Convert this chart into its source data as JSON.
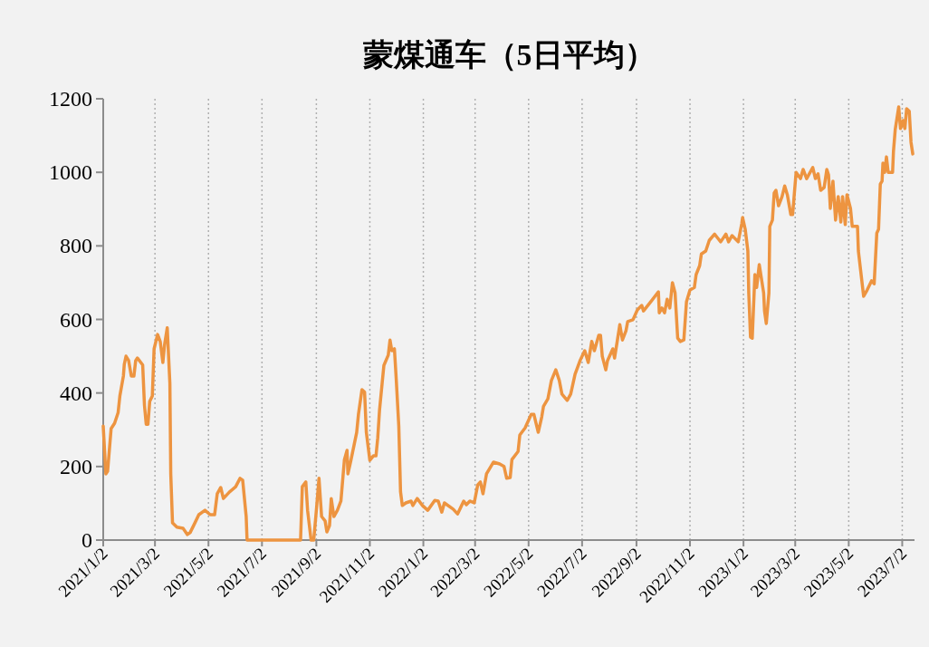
{
  "chart_data": {
    "type": "line",
    "title": "蒙煤通车（5日平均）",
    "x": [
      "2021-01-02",
      "2021-01-05",
      "2021-01-07",
      "2021-01-11",
      "2021-01-15",
      "2021-01-19",
      "2021-01-21",
      "2021-01-25",
      "2021-01-26",
      "2021-01-28",
      "2021-01-31",
      "2021-02-03",
      "2021-02-06",
      "2021-02-08",
      "2021-02-10",
      "2021-02-16",
      "2021-02-18",
      "2021-02-20",
      "2021-02-22",
      "2021-02-24",
      "2021-02-27",
      "2021-03-01",
      "2021-03-05",
      "2021-03-08",
      "2021-03-11",
      "2021-03-13",
      "2021-03-16",
      "2021-03-19",
      "2021-03-20",
      "2021-03-22",
      "2021-03-27",
      "2021-04-03",
      "2021-04-08",
      "2021-04-11",
      "2021-04-16",
      "2021-04-21",
      "2021-04-28",
      "2021-05-04",
      "2021-05-09",
      "2021-05-12",
      "2021-05-16",
      "2021-05-19",
      "2021-05-26",
      "2021-06-02",
      "2021-06-07",
      "2021-06-10",
      "2021-06-14",
      "2021-06-15",
      "2021-08-15",
      "2021-08-17",
      "2021-08-21",
      "2021-08-23",
      "2021-08-27",
      "2021-08-30",
      "2021-09-02",
      "2021-09-05",
      "2021-09-08",
      "2021-09-12",
      "2021-09-14",
      "2021-09-17",
      "2021-09-19",
      "2021-09-22",
      "2021-09-26",
      "2021-09-30",
      "2021-10-04",
      "2021-10-07",
      "2021-10-08",
      "2021-10-11",
      "2021-10-18",
      "2021-10-20",
      "2021-10-24",
      "2021-10-27",
      "2021-10-29",
      "2021-11-02",
      "2021-11-06",
      "2021-11-09",
      "2021-11-11",
      "2021-11-13",
      "2021-11-16",
      "2021-11-18",
      "2021-11-23",
      "2021-11-25",
      "2021-11-27",
      "2021-11-30",
      "2021-12-02",
      "2021-12-05",
      "2021-12-07",
      "2021-12-09",
      "2021-12-13",
      "2021-12-19",
      "2021-12-21",
      "2021-12-26",
      "2022-01-01",
      "2022-01-07",
      "2022-01-15",
      "2022-01-19",
      "2022-01-23",
      "2022-01-26",
      "2022-02-05",
      "2022-02-10",
      "2022-02-17",
      "2022-02-20",
      "2022-02-24",
      "2022-03-01",
      "2022-03-05",
      "2022-03-08",
      "2022-03-11",
      "2022-03-15",
      "2022-03-23",
      "2022-03-30",
      "2022-04-04",
      "2022-04-07",
      "2022-04-11",
      "2022-04-13",
      "2022-04-20",
      "2022-04-22",
      "2022-04-28",
      "2022-05-05",
      "2022-05-08",
      "2022-05-13",
      "2022-05-17",
      "2022-05-19",
      "2022-05-24",
      "2022-05-28",
      "2022-06-02",
      "2022-06-06",
      "2022-06-09",
      "2022-06-15",
      "2022-06-19",
      "2022-06-24",
      "2022-06-30",
      "2022-07-05",
      "2022-07-09",
      "2022-07-13",
      "2022-07-16",
      "2022-07-21",
      "2022-07-23",
      "2022-07-25",
      "2022-07-29",
      "2022-07-31",
      "2022-08-06",
      "2022-08-08",
      "2022-08-11",
      "2022-08-14",
      "2022-08-17",
      "2022-08-21",
      "2022-08-23",
      "2022-08-29",
      "2022-09-03",
      "2022-09-08",
      "2022-09-10",
      "2022-09-19",
      "2022-09-27",
      "2022-09-28",
      "2022-10-01",
      "2022-10-04",
      "2022-10-07",
      "2022-10-10",
      "2022-10-13",
      "2022-10-16",
      "2022-10-19",
      "2022-10-22",
      "2022-10-26",
      "2022-10-29",
      "2022-11-02",
      "2022-11-07",
      "2022-11-09",
      "2022-11-13",
      "2022-11-15",
      "2022-11-20",
      "2022-11-24",
      "2022-11-30",
      "2022-12-03",
      "2022-12-07",
      "2022-12-13",
      "2022-12-16",
      "2022-12-20",
      "2022-12-27",
      "2022-12-31",
      "2023-01-01",
      "2023-01-04",
      "2023-01-07",
      "2023-01-08",
      "2023-01-10",
      "2023-01-12",
      "2023-01-15",
      "2023-01-17",
      "2023-01-20",
      "2023-01-25",
      "2023-01-26",
      "2023-01-28",
      "2023-01-31",
      "2023-02-01",
      "2023-02-04",
      "2023-02-06",
      "2023-02-08",
      "2023-02-11",
      "2023-02-15",
      "2023-02-18",
      "2023-02-21",
      "2023-02-25",
      "2023-02-27",
      "2023-03-03",
      "2023-03-08",
      "2023-03-11",
      "2023-03-15",
      "2023-03-22",
      "2023-03-25",
      "2023-03-28",
      "2023-03-31",
      "2023-04-04",
      "2023-04-07",
      "2023-04-09",
      "2023-04-11",
      "2023-04-14",
      "2023-04-17",
      "2023-04-20",
      "2023-04-23",
      "2023-04-25",
      "2023-04-28",
      "2023-04-30",
      "2023-05-04",
      "2023-05-06",
      "2023-05-12",
      "2023-05-13",
      "2023-05-19",
      "2023-05-23",
      "2023-05-28",
      "2023-05-31",
      "2023-06-03",
      "2023-06-05",
      "2023-06-07",
      "2023-06-09",
      "2023-06-10",
      "2023-06-12",
      "2023-06-14",
      "2023-06-16",
      "2023-06-21",
      "2023-06-22",
      "2023-06-24",
      "2023-06-28",
      "2023-06-30",
      "2023-07-03",
      "2023-07-05",
      "2023-07-07",
      "2023-07-10",
      "2023-07-12",
      "2023-07-14"
    ],
    "series": [
      {
        "color": "#ed9440",
        "values": [
          310,
          180,
          187,
          303,
          318,
          347,
          392,
          446,
          478,
          500,
          488,
          446,
          446,
          488,
          495,
          476,
          367,
          315,
          315,
          377,
          392,
          520,
          559,
          540,
          483,
          532,
          577,
          426,
          180,
          47,
          35,
          32,
          15,
          20,
          44,
          69,
          81,
          69,
          69,
          126,
          143,
          113,
          131,
          145,
          168,
          163,
          64,
          0,
          0,
          145,
          158,
          81,
          0,
          0,
          81,
          168,
          64,
          52,
          22,
          39,
          113,
          64,
          81,
          106,
          219,
          244,
          180,
          212,
          293,
          342,
          409,
          402,
          293,
          217,
          229,
          229,
          278,
          352,
          426,
          475,
          503,
          544,
          515,
          520,
          441,
          310,
          131,
          94,
          101,
          106,
          94,
          113,
          94,
          81,
          108,
          106,
          76,
          101,
          84,
          71,
          106,
          96,
          106,
          101,
          150,
          158,
          126,
          180,
          212,
          207,
          200,
          168,
          170,
          219,
          241,
          286,
          305,
          342,
          342,
          293,
          335,
          364,
          384,
          434,
          463,
          434,
          397,
          380,
          397,
          451,
          490,
          515,
          483,
          540,
          515,
          557,
          557,
          500,
          463,
          488,
          520,
          495,
          540,
          586,
          544,
          569,
          594,
          599,
          626,
          638,
          623,
          650,
          675,
          618,
          631,
          618,
          655,
          631,
          700,
          672,
          549,
          540,
          544,
          648,
          680,
          687,
          722,
          746,
          778,
          786,
          815,
          832,
          823,
          811,
          832,
          811,
          828,
          811,
          860,
          877,
          845,
          786,
          672,
          552,
          549,
          722,
          687,
          749,
          672,
          623,
          589,
          672,
          853,
          870,
          944,
          951,
          909,
          934,
          963,
          939,
          885,
          885,
          1000,
          983,
          1008,
          983,
          1013,
          983,
          996,
          951,
          959,
          1008,
          993,
          902,
          976,
          870,
          934,
          865,
          934,
          858,
          939,
          902,
          853,
          853,
          786,
          663,
          680,
          705,
          697,
          835,
          845,
          968,
          976,
          1025,
          1000,
          1042,
          1000,
          1000,
          1057,
          1116,
          1178,
          1119,
          1141,
          1119,
          1173,
          1166,
          1082,
          1050
        ]
      }
    ],
    "xlim": [
      "2021-01-02",
      "2023-07-16"
    ],
    "xticks": [
      {
        "value": "2021-01-02",
        "label": "2021/1/2"
      },
      {
        "value": "2021-03-02",
        "label": "2021/3/2"
      },
      {
        "value": "2021-05-02",
        "label": "2021/5/2"
      },
      {
        "value": "2021-07-02",
        "label": "2021/7/2"
      },
      {
        "value": "2021-09-02",
        "label": "2021/9/2"
      },
      {
        "value": "2021-11-02",
        "label": "2021/11/2"
      },
      {
        "value": "2022-01-02",
        "label": "2022/1/2"
      },
      {
        "value": "2022-03-02",
        "label": "2022/3/2"
      },
      {
        "value": "2022-05-02",
        "label": "2022/5/2"
      },
      {
        "value": "2022-07-02",
        "label": "2022/7/2"
      },
      {
        "value": "2022-09-02",
        "label": "2022/9/2"
      },
      {
        "value": "2022-11-02",
        "label": "2022/11/2"
      },
      {
        "value": "2023-01-02",
        "label": "2023/1/2"
      },
      {
        "value": "2023-03-02",
        "label": "2023/3/2"
      },
      {
        "value": "2023-05-02",
        "label": "2023/5/2"
      },
      {
        "value": "2023-07-02",
        "label": "2023/7/2"
      }
    ],
    "ylim": [
      0,
      1200
    ],
    "yticks": [
      0,
      200,
      400,
      600,
      800,
      1000,
      1200
    ],
    "grid": "x"
  }
}
